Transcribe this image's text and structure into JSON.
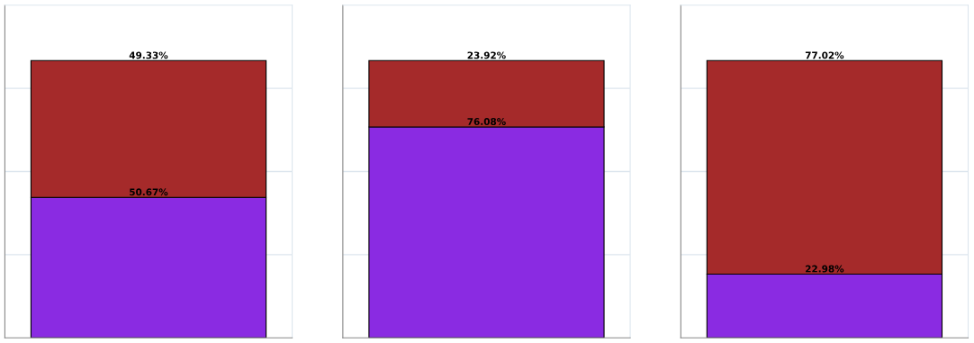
{
  "chart_data": [
    {
      "type": "bar",
      "stacked": true,
      "categories": [
        null
      ],
      "ylim": [
        0,
        120
      ],
      "yticks": [
        {
          "value": 30,
          "label": null
        },
        {
          "value": 60,
          "label": null
        },
        {
          "value": 90,
          "label": null
        }
      ],
      "grid": "y",
      "series": [
        {
          "color": "#8a2be2",
          "values": [
            50.67
          ],
          "value_labels": [
            "50.67%"
          ]
        },
        {
          "color": "#a52a2a",
          "values": [
            49.33
          ],
          "value_labels": [
            "49.33%"
          ]
        }
      ]
    },
    {
      "type": "bar",
      "stacked": true,
      "categories": [
        null
      ],
      "ylim": [
        0,
        120
      ],
      "yticks": [
        {
          "value": 30,
          "label": null
        },
        {
          "value": 60,
          "label": null
        },
        {
          "value": 90,
          "label": null
        }
      ],
      "grid": "y",
      "series": [
        {
          "color": "#8a2be2",
          "values": [
            76.08
          ],
          "value_labels": [
            "76.08%"
          ]
        },
        {
          "color": "#a52a2a",
          "values": [
            23.92
          ],
          "value_labels": [
            "23.92%"
          ]
        }
      ]
    },
    {
      "type": "bar",
      "stacked": true,
      "categories": [
        null
      ],
      "ylim": [
        0,
        120
      ],
      "yticks": [
        {
          "value": 30,
          "label": null
        },
        {
          "value": 60,
          "label": null
        },
        {
          "value": 90,
          "label": null
        }
      ],
      "grid": "y",
      "series": [
        {
          "color": "#8a2be2",
          "values": [
            22.98
          ],
          "value_labels": [
            "22.98%"
          ]
        },
        {
          "color": "#a52a2a",
          "values": [
            77.02
          ],
          "value_labels": [
            "77.02%"
          ]
        }
      ]
    }
  ]
}
